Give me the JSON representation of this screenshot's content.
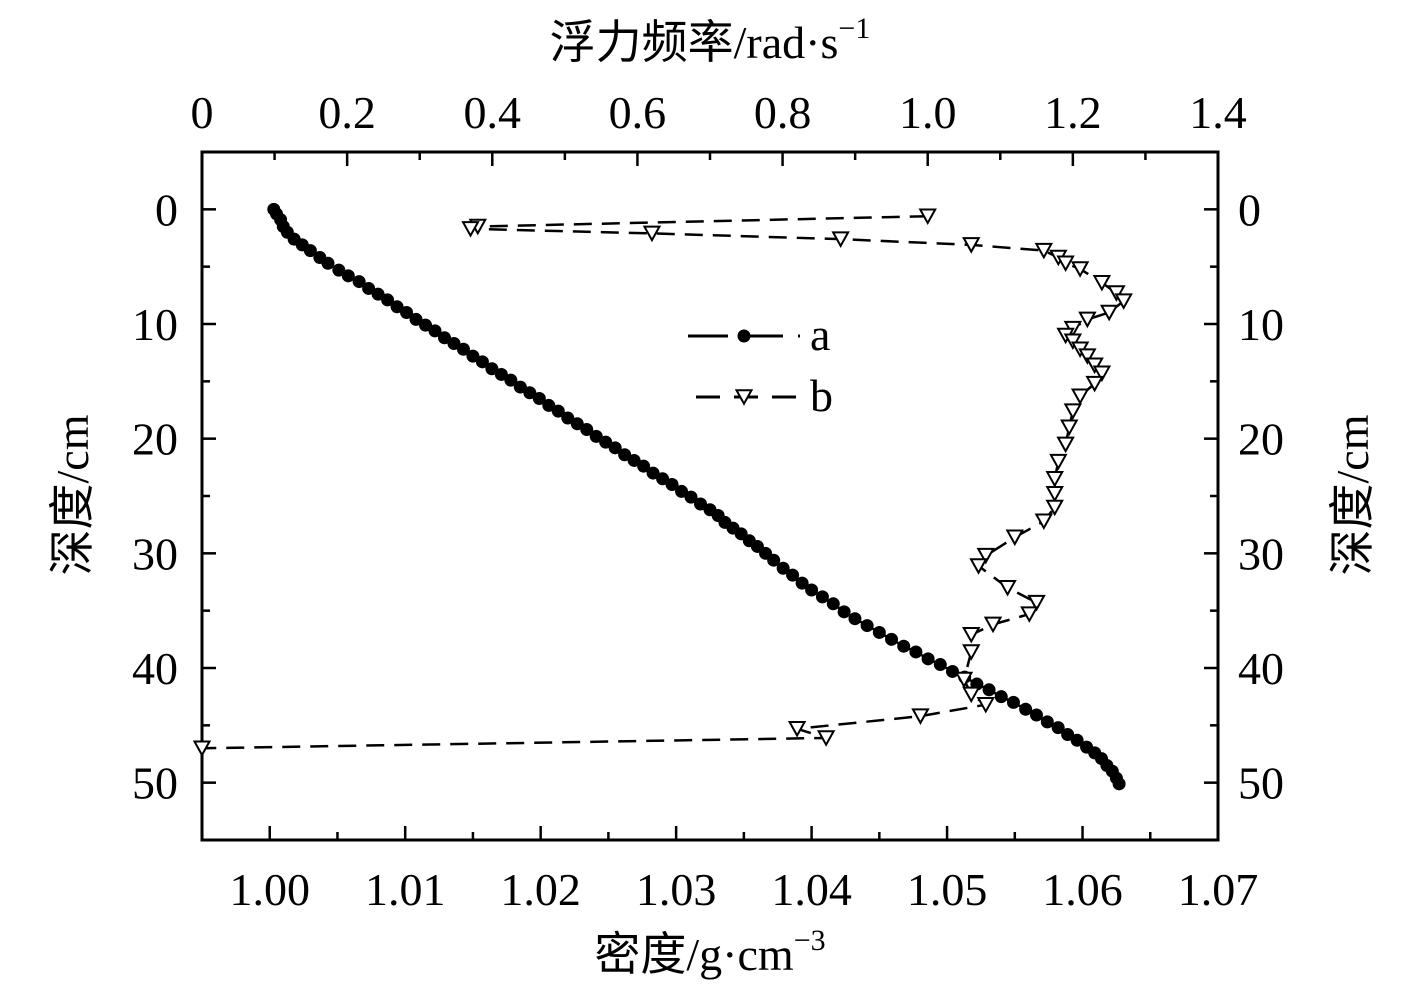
{
  "chart_data": {
    "type": "line",
    "x_bottom": {
      "label_cn": "密度",
      "label_unit": "/g·cm",
      "label_exp": "−3",
      "range": [
        0.995,
        1.07
      ],
      "ticks": [
        1.0,
        1.01,
        1.02,
        1.03,
        1.04,
        1.05,
        1.06,
        1.07
      ],
      "tick_labels": [
        "1.00",
        "1.01",
        "1.02",
        "1.03",
        "1.04",
        "1.05",
        "1.06",
        "1.07"
      ]
    },
    "x_top": {
      "label_cn": "浮力频率",
      "label_unit": "/rad·s",
      "label_exp": "−1",
      "range": [
        0,
        1.4
      ],
      "ticks": [
        0,
        0.2,
        0.4,
        0.6,
        0.8,
        1.0,
        1.2,
        1.4
      ],
      "tick_labels": [
        "0",
        "0.2",
        "0.4",
        "0.6",
        "0.8",
        "1.0",
        "1.2",
        "1.4"
      ]
    },
    "y_left": {
      "label_cn": "深度",
      "label_unit": "/cm",
      "range": [
        -5,
        55
      ],
      "ticks": [
        0,
        10,
        20,
        30,
        40,
        50
      ],
      "tick_labels": [
        "0",
        "10",
        "20",
        "30",
        "40",
        "50"
      ]
    },
    "y_right": {
      "label_cn": "深度",
      "label_unit": "/cm",
      "range": [
        -5,
        55
      ],
      "ticks": [
        0,
        10,
        20,
        30,
        40,
        50
      ],
      "tick_labels": [
        "0",
        "10",
        "20",
        "30",
        "40",
        "50"
      ]
    },
    "legend": {
      "placement": "center",
      "entries": [
        {
          "name": "a",
          "style": "solid-dot"
        },
        {
          "name": "b",
          "style": "dashed-triangle"
        }
      ]
    },
    "series": [
      {
        "name": "a",
        "axis_x": "bottom",
        "marker": "circle",
        "line": "solid",
        "points": [
          [
            1.0003,
            0
          ],
          [
            1.0005,
            0.4
          ],
          [
            1.0008,
            0.9
          ],
          [
            1.001,
            1.5
          ],
          [
            1.0013,
            2.0
          ],
          [
            1.0018,
            2.6
          ],
          [
            1.0024,
            3.1
          ],
          [
            1.003,
            3.6
          ],
          [
            1.0037,
            4.2
          ],
          [
            1.0043,
            4.7
          ],
          [
            1.0051,
            5.3
          ],
          [
            1.0058,
            5.8
          ],
          [
            1.0066,
            6.3
          ],
          [
            1.0073,
            6.9
          ],
          [
            1.008,
            7.4
          ],
          [
            1.0087,
            7.9
          ],
          [
            1.0094,
            8.5
          ],
          [
            1.0101,
            9.0
          ],
          [
            1.0108,
            9.6
          ],
          [
            1.0115,
            10.1
          ],
          [
            1.0122,
            10.6
          ],
          [
            1.0129,
            11.2
          ],
          [
            1.0136,
            11.7
          ],
          [
            1.0143,
            12.2
          ],
          [
            1.015,
            12.8
          ],
          [
            1.0157,
            13.3
          ],
          [
            1.0164,
            13.9
          ],
          [
            1.0171,
            14.4
          ],
          [
            1.0178,
            14.9
          ],
          [
            1.0185,
            15.5
          ],
          [
            1.0192,
            16.0
          ],
          [
            1.0199,
            16.5
          ],
          [
            1.0206,
            17.1
          ],
          [
            1.0213,
            17.6
          ],
          [
            1.022,
            18.2
          ],
          [
            1.0227,
            18.7
          ],
          [
            1.0234,
            19.2
          ],
          [
            1.0241,
            19.8
          ],
          [
            1.0248,
            20.3
          ],
          [
            1.0255,
            20.8
          ],
          [
            1.0262,
            21.4
          ],
          [
            1.0269,
            21.9
          ],
          [
            1.0276,
            22.4
          ],
          [
            1.0283,
            23.0
          ],
          [
            1.029,
            23.5
          ],
          [
            1.0297,
            24.0
          ],
          [
            1.0304,
            24.6
          ],
          [
            1.0311,
            25.1
          ],
          [
            1.0318,
            25.7
          ],
          [
            1.0325,
            26.2
          ],
          [
            1.0331,
            26.7
          ],
          [
            1.0336,
            27.3
          ],
          [
            1.0342,
            27.8
          ],
          [
            1.0348,
            28.3
          ],
          [
            1.0354,
            28.9
          ],
          [
            1.036,
            29.4
          ],
          [
            1.0366,
            30.0
          ],
          [
            1.0372,
            30.6
          ],
          [
            1.0379,
            31.3
          ],
          [
            1.0386,
            31.9
          ],
          [
            1.0393,
            32.6
          ],
          [
            1.04,
            33.2
          ],
          [
            1.0408,
            33.8
          ],
          [
            1.0416,
            34.4
          ],
          [
            1.0424,
            35.1
          ],
          [
            1.0432,
            35.7
          ],
          [
            1.0441,
            36.3
          ],
          [
            1.045,
            36.9
          ],
          [
            1.0459,
            37.5
          ],
          [
            1.0468,
            38.1
          ],
          [
            1.0477,
            38.6
          ],
          [
            1.0486,
            39.2
          ],
          [
            1.0495,
            39.7
          ],
          [
            1.0504,
            40.3
          ],
          [
            1.0513,
            40.8
          ],
          [
            1.0522,
            41.4
          ],
          [
            1.0531,
            41.9
          ],
          [
            1.054,
            42.5
          ],
          [
            1.0549,
            43.0
          ],
          [
            1.0558,
            43.6
          ],
          [
            1.0566,
            44.1
          ],
          [
            1.0574,
            44.7
          ],
          [
            1.0582,
            45.2
          ],
          [
            1.0589,
            45.8
          ],
          [
            1.0596,
            46.3
          ],
          [
            1.0603,
            46.9
          ],
          [
            1.0609,
            47.4
          ],
          [
            1.0614,
            47.9
          ],
          [
            1.0618,
            48.5
          ],
          [
            1.0622,
            49.0
          ],
          [
            1.0625,
            49.6
          ],
          [
            1.0627,
            50.1
          ]
        ]
      },
      {
        "name": "b",
        "axis_x": "top",
        "marker": "triangle-down",
        "line": "dashed",
        "points": [
          [
            1.0,
            0.6
          ],
          [
            0.38,
            1.5
          ],
          [
            0.37,
            1.7
          ],
          [
            0.62,
            2.1
          ],
          [
            0.88,
            2.6
          ],
          [
            1.06,
            3.1
          ],
          [
            1.16,
            3.6
          ],
          [
            1.18,
            4.2
          ],
          [
            1.19,
            4.7
          ],
          [
            1.21,
            5.2
          ],
          [
            1.24,
            6.4
          ],
          [
            1.26,
            7.3
          ],
          [
            1.27,
            8.0
          ],
          [
            1.25,
            9.0
          ],
          [
            1.22,
            9.6
          ],
          [
            1.2,
            10.4
          ],
          [
            1.19,
            11.0
          ],
          [
            1.2,
            11.5
          ],
          [
            1.21,
            12.2
          ],
          [
            1.22,
            12.8
          ],
          [
            1.23,
            13.6
          ],
          [
            1.24,
            14.3
          ],
          [
            1.23,
            15.2
          ],
          [
            1.21,
            16.3
          ],
          [
            1.2,
            17.6
          ],
          [
            1.195,
            19.0
          ],
          [
            1.19,
            20.5
          ],
          [
            1.18,
            22.0
          ],
          [
            1.175,
            23.5
          ],
          [
            1.175,
            24.8
          ],
          [
            1.175,
            26.0
          ],
          [
            1.16,
            27.2
          ],
          [
            1.12,
            28.6
          ],
          [
            1.08,
            30.2
          ],
          [
            1.07,
            31.1
          ],
          [
            1.11,
            33.0
          ],
          [
            1.15,
            34.3
          ],
          [
            1.14,
            35.3
          ],
          [
            1.09,
            36.2
          ],
          [
            1.06,
            37.1
          ],
          [
            1.06,
            38.6
          ],
          [
            1.05,
            41.0
          ],
          [
            1.06,
            42.3
          ],
          [
            1.08,
            43.2
          ],
          [
            0.99,
            44.2
          ],
          [
            0.82,
            45.3
          ],
          [
            0.86,
            46.1
          ],
          [
            0.0,
            47.0
          ]
        ]
      }
    ]
  }
}
